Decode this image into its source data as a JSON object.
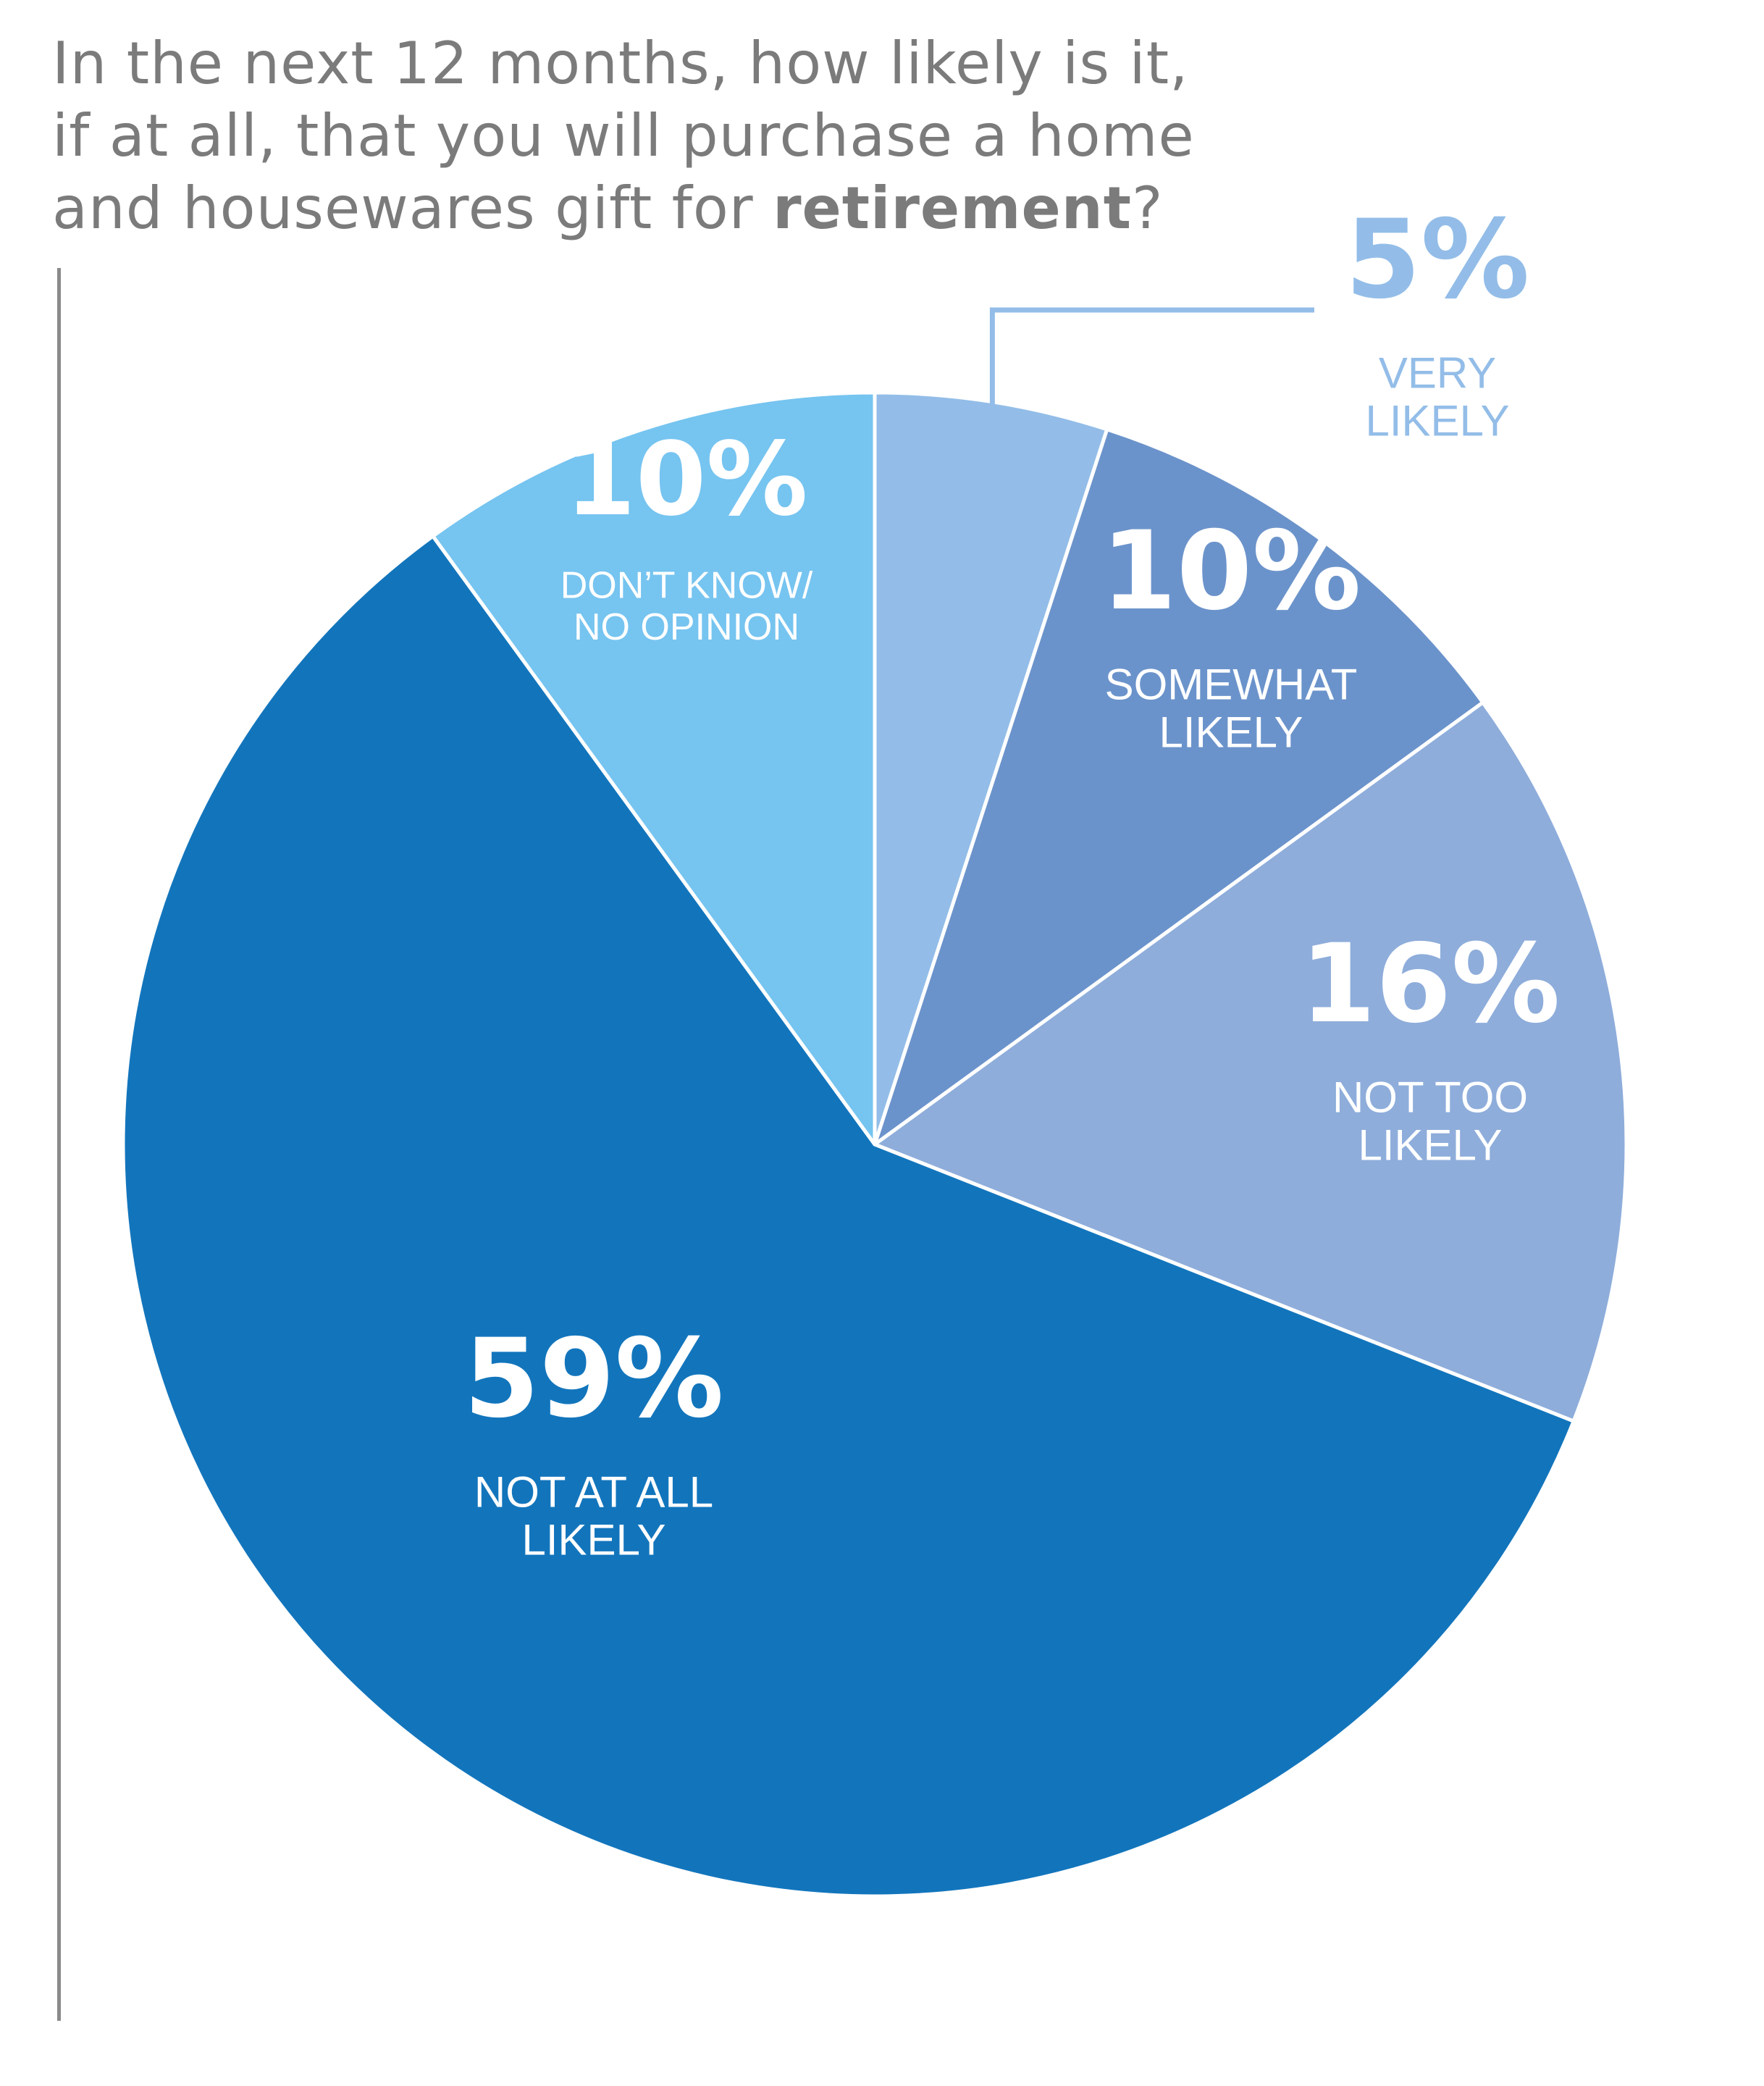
{
  "title": {
    "line1": "In the next 12 months, how likely is it,",
    "line2": "if at all, that you will purchase a home",
    "line3_prefix": "and housewares gift for ",
    "line3_emphasis": "retirement",
    "line3_suffix": "?"
  },
  "chart_data": {
    "type": "pie",
    "slices": [
      {
        "percent_label": "5%",
        "value": 5,
        "label_lines": [
          "VERY",
          "LIKELY"
        ],
        "color": "#93bde8"
      },
      {
        "percent_label": "10%",
        "value": 10,
        "label_lines": [
          "SOMEWHAT",
          "LIKELY"
        ],
        "color": "#6b93cb"
      },
      {
        "percent_label": "16%",
        "value": 16,
        "label_lines": [
          "NOT TOO",
          "LIKELY"
        ],
        "color": "#8eaddb"
      },
      {
        "percent_label": "59%",
        "value": 59,
        "label_lines": [
          "NOT AT ALL",
          "LIKELY"
        ],
        "color": "#1275bc"
      },
      {
        "percent_label": "10%",
        "value": 10,
        "label_lines": [
          "DON’T KNOW/",
          "NO OPINION"
        ],
        "color": "#76c4f0"
      }
    ],
    "start": "12 o'clock",
    "direction": "clockwise",
    "legend": "none"
  }
}
